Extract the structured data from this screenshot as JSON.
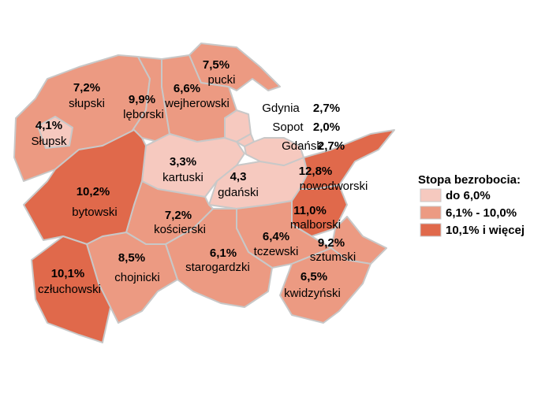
{
  "regions": [
    {
      "name": "słupski",
      "value": "7,2%",
      "color": "#ec9a82"
    },
    {
      "name": "Słupsk",
      "value": "4,1%",
      "color": "#f6c9bf"
    },
    {
      "name": "lęborski",
      "value": "9,9%",
      "color": "#ec9a82"
    },
    {
      "name": "wejherowski",
      "value": "6,6%",
      "color": "#ec9a82"
    },
    {
      "name": "pucki",
      "value": "7,5%",
      "color": "#ec9a82"
    },
    {
      "name": "kartuski",
      "value": "3,3%",
      "color": "#f6c9bf"
    },
    {
      "name": "gdański",
      "value": "4,3",
      "color": "#f6c9bf"
    },
    {
      "name": "nowodworski",
      "value": "12,8%",
      "color": "#e0694b"
    },
    {
      "name": "malborski",
      "value": "11,0%",
      "color": "#e0694b"
    },
    {
      "name": "sztumski",
      "value": "9,2%",
      "color": "#ec9a82"
    },
    {
      "name": "tczewski",
      "value": "6,4%",
      "color": "#ec9a82"
    },
    {
      "name": "kwidzyński",
      "value": "6,5%",
      "color": "#ec9a82"
    },
    {
      "name": "starogardzki",
      "value": "6,1%",
      "color": "#ec9a82"
    },
    {
      "name": "kościerski",
      "value": "7,2%",
      "color": "#ec9a82"
    },
    {
      "name": "chojnicki",
      "value": "8,5%",
      "color": "#ec9a82"
    },
    {
      "name": "bytowski",
      "value": "10,2%",
      "color": "#e0694b"
    },
    {
      "name": "człuchowski",
      "value": "10,1%",
      "color": "#e0694b"
    }
  ],
  "cities": [
    {
      "name": "Gdynia",
      "value": "2,7%",
      "color": "#f6c9bf"
    },
    {
      "name": "Sopot",
      "value": "2,0%",
      "color": "#f6c9bf"
    },
    {
      "name": "Gdańsk",
      "value": "2,7%",
      "color": "#f6c9bf"
    }
  ],
  "legend": {
    "title": "Stopa bezrobocia:",
    "items": [
      {
        "label": "do 6,0%",
        "color": "#f6c9bf"
      },
      {
        "label": "6,1% - 10,0%",
        "color": "#ec9a82"
      },
      {
        "label": "10,1% i więcej",
        "color": "#e0694b"
      }
    ]
  }
}
